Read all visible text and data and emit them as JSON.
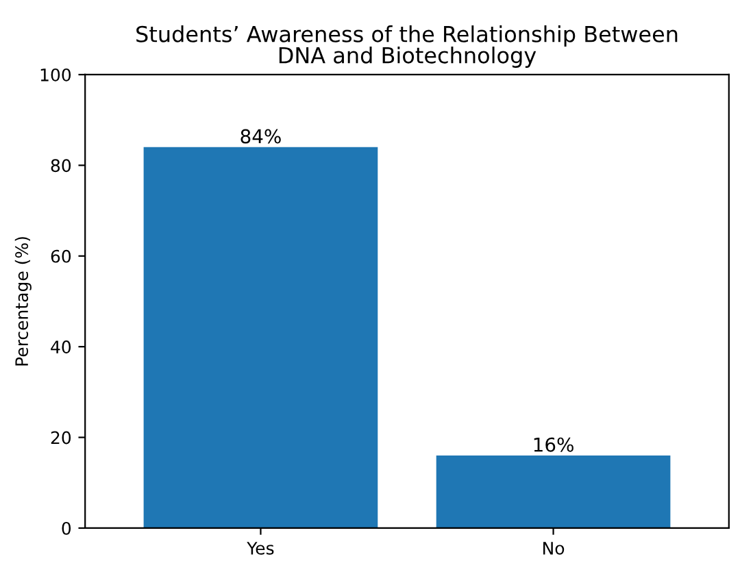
{
  "chart_data": {
    "type": "bar",
    "title": "Students’ Awareness of the Relationship Between\nDNA and Biotechnology",
    "ylabel": "Percentage (%)",
    "categories": [
      "Yes",
      "No"
    ],
    "values": [
      84,
      16
    ],
    "value_labels": [
      "84%",
      "16%"
    ],
    "color": "#1f77b4",
    "ylim": [
      0,
      100
    ],
    "yticks": [
      0,
      20,
      40,
      60,
      80,
      100
    ],
    "grid": false
  }
}
